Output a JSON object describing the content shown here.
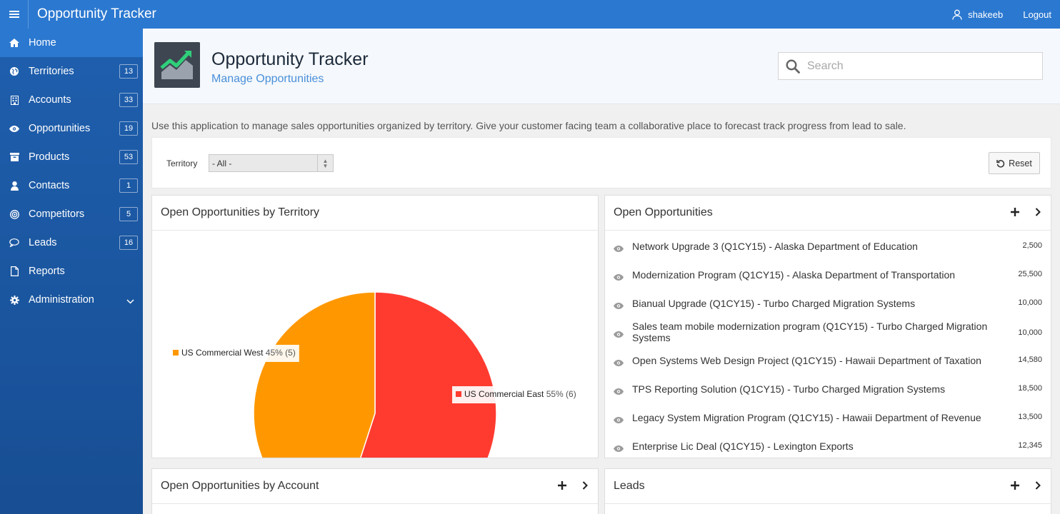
{
  "app": {
    "title": "Opportunity Tracker"
  },
  "topbar": {
    "username": "shakeeb",
    "logout_label": "Logout"
  },
  "sidebar": {
    "items": [
      {
        "label": "Home",
        "badge": null
      },
      {
        "label": "Territories",
        "badge": "13"
      },
      {
        "label": "Accounts",
        "badge": "33"
      },
      {
        "label": "Opportunities",
        "badge": "19"
      },
      {
        "label": "Products",
        "badge": "53"
      },
      {
        "label": "Contacts",
        "badge": "1"
      },
      {
        "label": "Competitors",
        "badge": "5"
      },
      {
        "label": "Leads",
        "badge": "16"
      },
      {
        "label": "Reports",
        "badge": null
      },
      {
        "label": "Administration",
        "badge": null
      }
    ]
  },
  "hero": {
    "title": "Opportunity Tracker",
    "subtitle": "Manage Opportunities"
  },
  "search": {
    "placeholder": "Search"
  },
  "intro": "Use this application to manage sales opportunities organized by territory. Give your customer facing team a collaborative place to forecast track progress from lead to sale.",
  "filter": {
    "label": "Territory",
    "value": "- All -",
    "reset_label": "Reset"
  },
  "panels": {
    "territory": {
      "title": "Open Opportunities by Territory"
    },
    "open_opps": {
      "title": "Open Opportunities",
      "items": [
        {
          "name": "Network Upgrade 3 (Q1CY15) - Alaska Department of Education",
          "value": "2,500"
        },
        {
          "name": "Modernization Program (Q1CY15) - Alaska Department of Transportation",
          "value": "25,500"
        },
        {
          "name": "Bianual Upgrade (Q1CY15) - Turbo Charged Migration Systems",
          "value": "10,000"
        },
        {
          "name": "Sales team mobile modernization program (Q1CY15) - Turbo Charged Migration Systems",
          "value": "10,000"
        },
        {
          "name": "Open Systems Web Design Project (Q1CY15) - Hawaii Department of Taxation",
          "value": "14,580"
        },
        {
          "name": "TPS Reporting Solution (Q1CY15) - Turbo Charged Migration Systems",
          "value": "18,500"
        },
        {
          "name": "Legacy System Migration Program (Q1CY15) - Hawaii Department of Revenue",
          "value": "13,500"
        },
        {
          "name": "Enterprise Lic Deal (Q1CY15) - Lexington Exports",
          "value": "12,345"
        }
      ]
    },
    "by_account": {
      "title": "Open Opportunities by Account"
    },
    "leads": {
      "title": "Leads"
    }
  },
  "colors": {
    "brand": "#2b78d0",
    "west": "#ff9800",
    "east": "#ff3b30"
  },
  "chart_data": {
    "type": "pie",
    "slices": [
      {
        "label": "US Commercial East",
        "percent": 55,
        "count": 6,
        "color": "#ff3b30"
      },
      {
        "label": "US Commercial West",
        "percent": 45,
        "count": 5,
        "color": "#ff9800"
      }
    ]
  }
}
